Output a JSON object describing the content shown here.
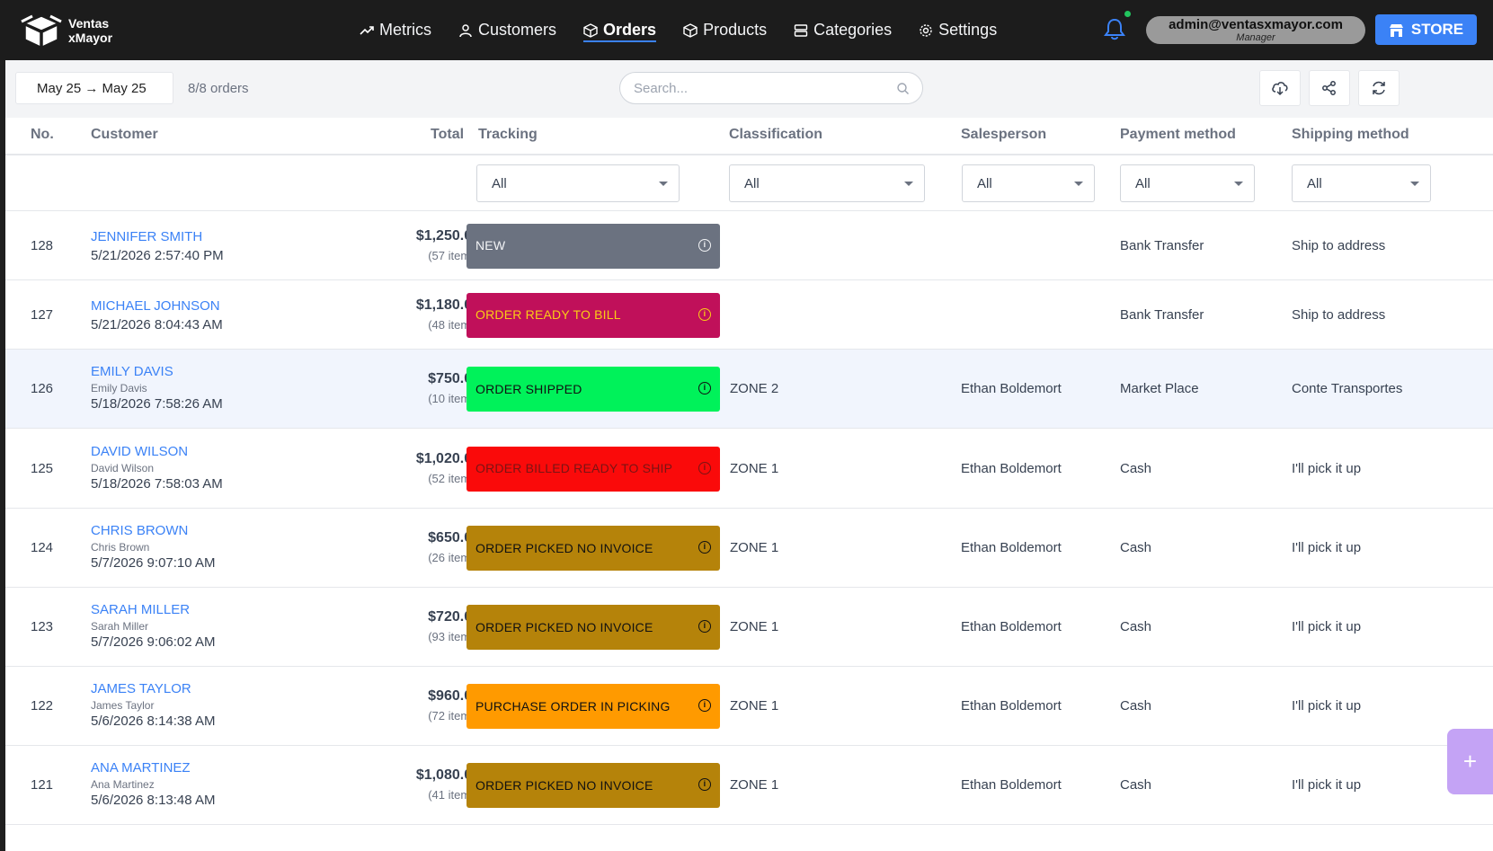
{
  "brand": {
    "line1": "Ventas",
    "line2": "xMayor"
  },
  "nav": {
    "items": [
      {
        "label": "Metrics",
        "icon": "trend-icon"
      },
      {
        "label": "Customers",
        "icon": "user-icon"
      },
      {
        "label": "Orders",
        "icon": "box-icon",
        "active": true
      },
      {
        "label": "Products",
        "icon": "box-icon"
      },
      {
        "label": "Categories",
        "icon": "list-icon"
      },
      {
        "label": "Settings",
        "icon": "gear-icon"
      }
    ]
  },
  "user": {
    "email": "admin@ventasxmayor.com",
    "role": "Manager"
  },
  "store_label": "STORE",
  "toolbar": {
    "date_range": "May 25 → May 25",
    "order_count": "8/8 orders",
    "search_placeholder": "Search..."
  },
  "columns": {
    "no": "No.",
    "customer": "Customer",
    "total": "Total",
    "tracking": "Tracking",
    "classification": "Classification",
    "salesperson": "Salesperson",
    "payment": "Payment method",
    "shipping": "Shipping method"
  },
  "filters": {
    "tracking": "All",
    "classification": "All",
    "salesperson": "All",
    "payment": "All",
    "shipping": "All"
  },
  "orders": [
    {
      "no": "128",
      "name": "JENNIFER SMITH",
      "sub": "",
      "date": "5/21/2026 2:57:40 PM",
      "total": "$1,250.00",
      "items": "(57 items)",
      "status": "NEW",
      "status_bg": "#6b7280",
      "status_fg": "#f3f4f6",
      "classification": "",
      "salesperson": "",
      "payment": "Bank Transfer",
      "shipping": "Ship to address"
    },
    {
      "no": "127",
      "name": "MICHAEL JOHNSON",
      "sub": "",
      "date": "5/21/2026 8:04:43 AM",
      "total": "$1,180.00",
      "items": "(48 items)",
      "status": "ORDER READY TO BILL",
      "status_bg": "#c0105a",
      "status_fg": "#facc15",
      "classification": "",
      "salesperson": "",
      "payment": "Bank Transfer",
      "shipping": "Ship to address"
    },
    {
      "no": "126",
      "name": "EMILY DAVIS",
      "sub": "Emily Davis",
      "date": "5/18/2026 7:58:26 AM",
      "total": "$750.00",
      "items": "(10 items)",
      "status": "ORDER SHIPPED",
      "status_bg": "#00f25a",
      "status_fg": "#111111",
      "classification": "ZONE 2",
      "salesperson": "Ethan Boldemort",
      "payment": "Market Place",
      "shipping": "Conte Transportes"
    },
    {
      "no": "125",
      "name": "DAVID WILSON",
      "sub": "David Wilson",
      "date": "5/18/2026 7:58:03 AM",
      "total": "$1,020.00",
      "items": "(52 items)",
      "status": "ORDER BILLED READY TO SHIP",
      "status_bg": "#fa0a0a",
      "status_fg": "#7a1414",
      "classification": "ZONE 1",
      "salesperson": "Ethan Boldemort",
      "payment": "Cash",
      "shipping": "I'll pick it up"
    },
    {
      "no": "124",
      "name": "CHRIS BROWN",
      "sub": "Chris Brown",
      "date": "5/7/2026 9:07:10 AM",
      "total": "$650.00",
      "items": "(26 items)",
      "status": "ORDER PICKED NO INVOICE",
      "status_bg": "#b5830a",
      "status_fg": "#111111",
      "classification": "ZONE 1",
      "salesperson": "Ethan Boldemort",
      "payment": "Cash",
      "shipping": "I'll pick it up"
    },
    {
      "no": "123",
      "name": "SARAH MILLER",
      "sub": "Sarah Miller",
      "date": "5/7/2026 9:06:02 AM",
      "total": "$720.00",
      "items": "(93 items)",
      "status": "ORDER PICKED NO INVOICE",
      "status_bg": "#b5830a",
      "status_fg": "#111111",
      "classification": "ZONE 1",
      "salesperson": "Ethan Boldemort",
      "payment": "Cash",
      "shipping": "I'll pick it up"
    },
    {
      "no": "122",
      "name": "JAMES TAYLOR",
      "sub": "James Taylor",
      "date": "5/6/2026 8:14:38 AM",
      "total": "$960.00",
      "items": "(72 items)",
      "status": "PURCHASE ORDER IN PICKING",
      "status_bg": "#ff9a00",
      "status_fg": "#111111",
      "classification": "ZONE 1",
      "salesperson": "Ethan Boldemort",
      "payment": "Cash",
      "shipping": "I'll pick it up"
    },
    {
      "no": "121",
      "name": "ANA MARTINEZ",
      "sub": "Ana Martinez",
      "date": "5/6/2026 8:13:48 AM",
      "total": "$1,080.00",
      "items": "(41 items)",
      "status": "ORDER PICKED NO INVOICE",
      "status_bg": "#b5830a",
      "status_fg": "#111111",
      "classification": "ZONE 1",
      "salesperson": "Ethan Boldemort",
      "payment": "Cash",
      "shipping": "I'll pick it up"
    }
  ],
  "fab_label": "+",
  "colors": {
    "accent": "#3b82f6",
    "navbar": "#1c1c1c",
    "fab": "#c4a3f5",
    "notification": "#22c55e"
  }
}
